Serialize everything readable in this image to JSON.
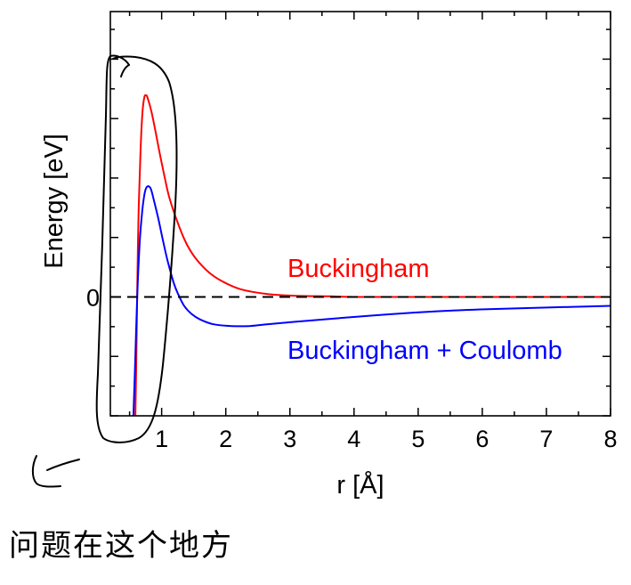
{
  "chart_data": {
    "type": "line",
    "title": "",
    "xlabel": "r [Å]",
    "ylabel": "Energy [eV]",
    "xlim": [
      0.2,
      8
    ],
    "ylim": [
      -2,
      4.8
    ],
    "grid": false,
    "xticks": [
      1,
      2,
      3,
      4,
      5,
      6,
      7,
      8
    ],
    "xtick_labels": [
      "1",
      "2",
      "3",
      "4",
      "5",
      "6",
      "7",
      "8"
    ],
    "x_minor_ticks": [
      0.5,
      1.5,
      2.5,
      3.5,
      4.5,
      5.5,
      6.5,
      7.5
    ],
    "yticks": [
      -2,
      -1,
      0,
      1,
      2,
      3,
      4
    ],
    "y_minor_ticks": [
      -1.5,
      -0.5,
      0.5,
      1.5,
      2.5,
      3.5,
      4.5
    ],
    "ytick_label_values": [
      0
    ],
    "ytick_labels": [
      "0"
    ],
    "reference_line": {
      "y": 0,
      "color": "#000000"
    },
    "series": [
      {
        "name": "Buckingham",
        "color": "#ff0000",
        "x": [
          0.59,
          0.61,
          0.62,
          0.64,
          0.67,
          0.7,
          0.73,
          0.76,
          0.78,
          0.84,
          0.91,
          0.98,
          1.05,
          1.12,
          1.26,
          1.39,
          1.53,
          1.74,
          1.95,
          2.23,
          2.64,
          3.06,
          3.6,
          4.0,
          5.0,
          6.0,
          7.0,
          8.0
        ],
        "y": [
          -2.0,
          -0.7,
          0.2,
          1.4,
          2.45,
          3.09,
          3.36,
          3.39,
          3.35,
          3.12,
          2.75,
          2.36,
          2.0,
          1.67,
          1.22,
          0.89,
          0.65,
          0.41,
          0.26,
          0.13,
          0.05,
          0.02,
          0.01,
          0.0,
          0.0,
          0.0,
          0.0,
          0.0
        ]
      },
      {
        "name": "Buckingham + Coulomb",
        "color": "#0000ff",
        "x": [
          0.56,
          0.59,
          0.62,
          0.66,
          0.7,
          0.74,
          0.78,
          0.83,
          0.88,
          0.95,
          1.02,
          1.09,
          1.19,
          1.26,
          1.35,
          1.46,
          1.6,
          1.81,
          2.09,
          2.37,
          2.64,
          3.06,
          3.61,
          4.31,
          5.14,
          5.97,
          6.95,
          8.0
        ],
        "y": [
          -2.0,
          -1.0,
          0.05,
          0.95,
          1.47,
          1.77,
          1.86,
          1.82,
          1.62,
          1.31,
          0.95,
          0.62,
          0.23,
          0.04,
          -0.15,
          -0.28,
          -0.38,
          -0.46,
          -0.49,
          -0.49,
          -0.46,
          -0.42,
          -0.37,
          -0.31,
          -0.25,
          -0.21,
          -0.18,
          -0.15
        ]
      }
    ]
  },
  "annotations": {
    "note": "问题在这个地方",
    "ink_color": "#000000"
  }
}
